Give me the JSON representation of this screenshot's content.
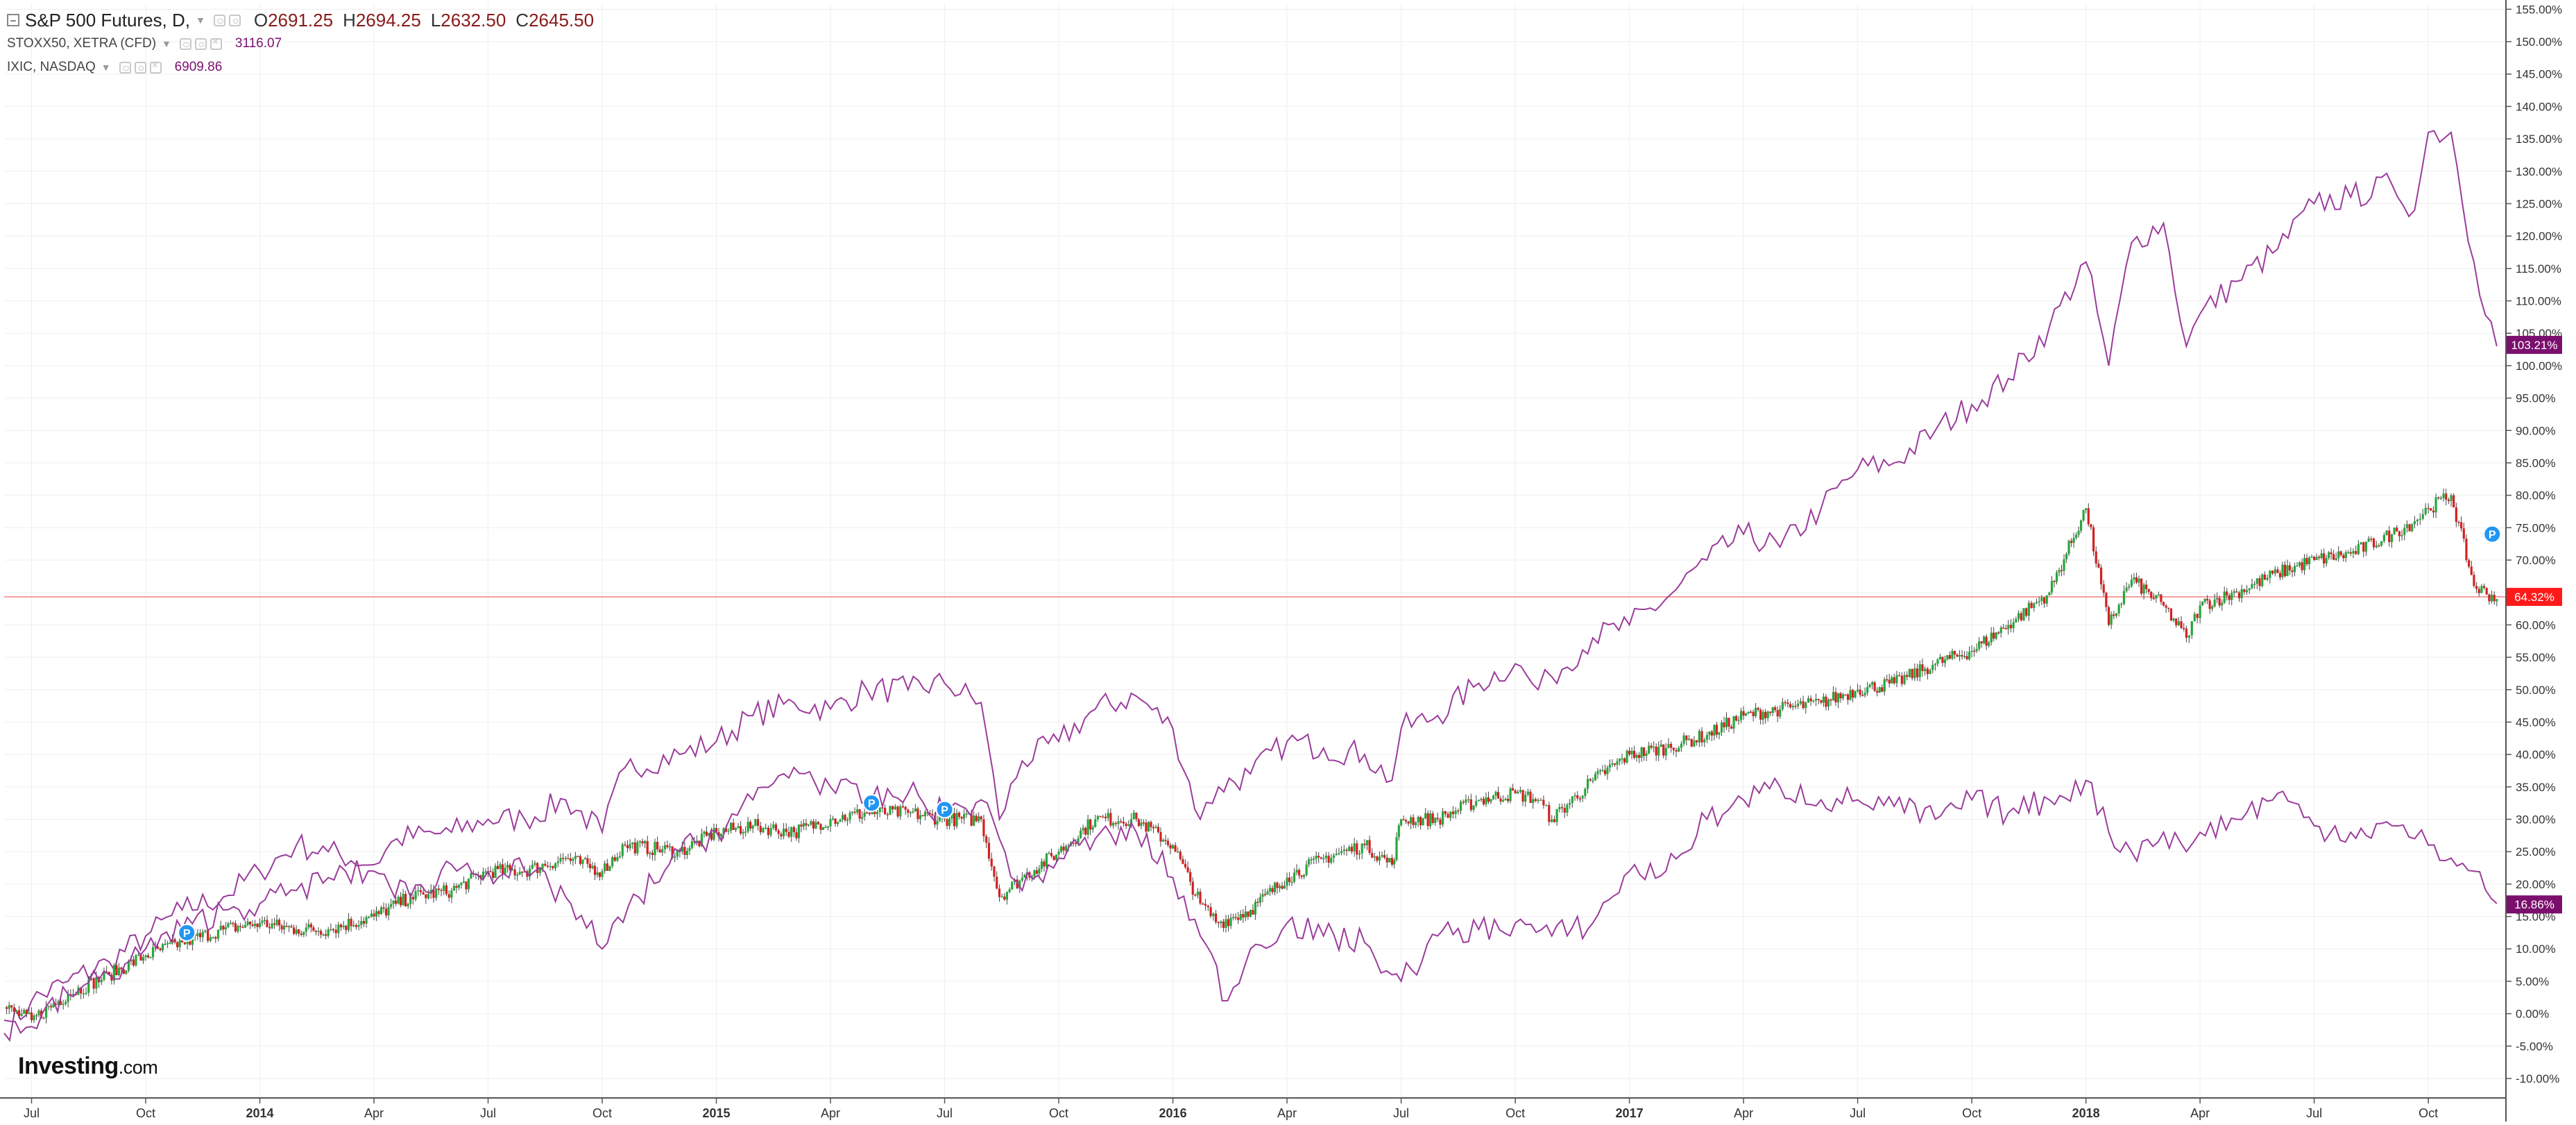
{
  "legend": {
    "main_symbol": "S&P 500 Futures, D,",
    "open_label": "O",
    "open": "2691.25",
    "high_label": "H",
    "high": "2694.25",
    "low_label": "L",
    "low": "2632.50",
    "close_label": "C",
    "close": "2645.50",
    "compare1_symbol": "STOXX50, XETRA (CFD)",
    "compare1_value": "3116.07",
    "compare2_symbol": "IXIC, NASDAQ",
    "compare2_value": "6909.86"
  },
  "branding": {
    "logo_bold": "Investing",
    "logo_suffix": ".com"
  },
  "colors": {
    "background": "#ffffff",
    "grid": "#efefef",
    "compare_line": "#9b3c9b",
    "candle_up": "#26a73a",
    "candle_down": "#d42020",
    "main_line": "#444444",
    "current_price_line": "#f08080",
    "label_sp": "#ff1a1a",
    "label_compare": "#7b0f6e",
    "marker": "#2196f3"
  },
  "icons": [
    "collapse-square-icon",
    "eye-icon",
    "gear-icon",
    "close-icon",
    "dropdown-caret-icon",
    "marker-p-icon"
  ],
  "chart_data": {
    "type": "line",
    "y_unit": "percent change",
    "ylim": [
      -13,
      156
    ],
    "y_ticks": [
      "-10.00%",
      "-5.00%",
      "0.00%",
      "5.00%",
      "10.00%",
      "15.00%",
      "20.00%",
      "25.00%",
      "30.00%",
      "35.00%",
      "40.00%",
      "45.00%",
      "50.00%",
      "55.00%",
      "60.00%",
      "65.00%",
      "70.00%",
      "75.00%",
      "80.00%",
      "85.00%",
      "90.00%",
      "95.00%",
      "100.00%",
      "105.00%",
      "110.00%",
      "115.00%",
      "120.00%",
      "125.00%",
      "130.00%",
      "135.00%",
      "140.00%",
      "145.00%",
      "150.00%",
      "155.00%"
    ],
    "x_ticks": [
      "Jul",
      "Oct",
      "2014",
      "Apr",
      "Jul",
      "Oct",
      "2015",
      "Apr",
      "Jul",
      "Oct",
      "2016",
      "Apr",
      "Jul",
      "Oct",
      "2017",
      "Apr",
      "Jul",
      "Oct",
      "2018",
      "Apr",
      "Jul",
      "Oct"
    ],
    "x_tick_pos": [
      2013.5,
      2013.75,
      2014.0,
      2014.25,
      2014.5,
      2014.75,
      2015.0,
      2015.25,
      2015.5,
      2015.75,
      2016.0,
      2016.25,
      2016.5,
      2016.75,
      2017.0,
      2017.25,
      2017.5,
      2017.75,
      2018.0,
      2018.25,
      2018.5,
      2018.75
    ],
    "xlim": [
      2013.44,
      2018.92
    ],
    "grid": true,
    "last_value_labels": [
      {
        "series": "IXIC, NASDAQ",
        "text": "103.21%",
        "value": 103.21
      },
      {
        "series": "S&P 500 Futures, D,",
        "text": "64.32%",
        "value": 64.32
      },
      {
        "series": "STOXX50, XETRA (CFD)",
        "text": "16.86%",
        "value": 16.86
      }
    ],
    "markers": [
      {
        "label": "P",
        "x": 2013.84,
        "y": 12.5
      },
      {
        "label": "P",
        "x": 2015.34,
        "y": 32.5
      },
      {
        "label": "P",
        "x": 2015.5,
        "y": 31.5
      },
      {
        "label": "P",
        "x": 2018.89,
        "y": 74
      }
    ],
    "series": [
      {
        "name": "IXIC, NASDAQ",
        "style": "line",
        "x": [
          2013.44,
          2013.5,
          2013.58,
          2013.67,
          2013.75,
          2013.83,
          2013.92,
          2014.0,
          2014.08,
          2014.15,
          2014.25,
          2014.3,
          2014.42,
          2014.5,
          2014.58,
          2014.67,
          2014.75,
          2014.8,
          2014.92,
          2015.0,
          2015.08,
          2015.17,
          2015.25,
          2015.33,
          2015.42,
          2015.5,
          2015.58,
          2015.62,
          2015.67,
          2015.75,
          2015.83,
          2015.92,
          2016.0,
          2016.06,
          2016.1,
          2016.17,
          2016.25,
          2016.33,
          2016.42,
          2016.48,
          2016.5,
          2016.58,
          2016.67,
          2016.75,
          2016.8,
          2016.83,
          2016.92,
          2017.0,
          2017.08,
          2017.17,
          2017.25,
          2017.33,
          2017.42,
          2017.5,
          2017.58,
          2017.67,
          2017.75,
          2017.83,
          2017.92,
          2018.0,
          2018.05,
          2018.1,
          2018.17,
          2018.22,
          2018.25,
          2018.33,
          2018.42,
          2018.5,
          2018.58,
          2018.67,
          2018.72,
          2018.75,
          2018.8,
          2018.85,
          2018.9
        ],
        "y": [
          -3,
          2,
          5,
          8,
          12,
          16,
          18,
          22,
          26,
          25,
          23,
          27,
          28,
          30,
          30,
          33,
          28,
          38,
          40,
          42,
          46,
          48,
          47,
          50,
          50,
          51,
          48,
          30,
          39,
          42,
          47,
          49,
          44,
          30,
          35,
          37,
          42,
          41,
          40,
          36,
          44,
          46,
          51,
          54,
          50,
          52,
          58,
          60,
          64,
          70,
          74,
          72,
          78,
          84,
          85,
          90,
          94,
          98,
          106,
          116,
          100,
          119,
          122,
          103,
          108,
          113,
          118,
          125,
          126,
          128,
          124,
          136,
          136,
          116,
          103
        ]
      },
      {
        "name": "S&P 500 Futures, D,",
        "style": "candles",
        "x": [
          2013.44,
          2013.5,
          2013.58,
          2013.67,
          2013.75,
          2013.83,
          2013.92,
          2014.0,
          2014.08,
          2014.15,
          2014.25,
          2014.33,
          2014.42,
          2014.5,
          2014.58,
          2014.67,
          2014.75,
          2014.8,
          2014.92,
          2015.0,
          2015.08,
          2015.17,
          2015.25,
          2015.33,
          2015.42,
          2015.5,
          2015.58,
          2015.62,
          2015.67,
          2015.75,
          2015.83,
          2015.92,
          2016.0,
          2016.06,
          2016.1,
          2016.17,
          2016.25,
          2016.33,
          2016.42,
          2016.48,
          2016.5,
          2016.58,
          2016.67,
          2016.75,
          2016.8,
          2016.83,
          2016.92,
          2017.0,
          2017.08,
          2017.17,
          2017.25,
          2017.33,
          2017.42,
          2017.5,
          2017.58,
          2017.67,
          2017.75,
          2017.83,
          2017.92,
          2018.0,
          2018.05,
          2018.1,
          2018.17,
          2018.22,
          2018.25,
          2018.33,
          2018.42,
          2018.5,
          2018.58,
          2018.67,
          2018.72,
          2018.75,
          2018.8,
          2018.85,
          2018.9
        ],
        "y": [
          1,
          -1,
          3,
          6,
          9,
          11,
          13,
          14,
          13,
          13,
          15,
          18,
          19,
          22,
          22,
          24,
          22,
          26,
          25,
          28,
          29,
          28,
          30,
          31,
          31,
          30,
          30,
          18,
          21,
          25,
          30,
          30,
          26,
          17,
          14,
          16,
          21,
          24,
          26,
          23,
          30,
          30,
          33,
          34,
          33,
          30,
          36,
          40,
          41,
          43,
          46,
          47,
          48,
          50,
          51,
          54,
          56,
          60,
          65,
          78,
          60,
          67,
          63,
          58,
          63,
          65,
          68,
          70,
          71,
          74,
          76,
          78,
          80,
          66,
          64
        ]
      },
      {
        "name": "STOXX50, XETRA (CFD)",
        "style": "line",
        "x": [
          2013.44,
          2013.5,
          2013.58,
          2013.67,
          2013.75,
          2013.83,
          2013.92,
          2014.0,
          2014.08,
          2014.15,
          2014.25,
          2014.33,
          2014.42,
          2014.5,
          2014.58,
          2014.67,
          2014.75,
          2014.83,
          2014.92,
          2015.0,
          2015.08,
          2015.17,
          2015.25,
          2015.33,
          2015.42,
          2015.5,
          2015.58,
          2015.62,
          2015.67,
          2015.75,
          2015.83,
          2015.92,
          2016.0,
          2016.06,
          2016.12,
          2016.17,
          2016.25,
          2016.33,
          2016.42,
          2016.48,
          2016.5,
          2016.58,
          2016.67,
          2016.75,
          2016.83,
          2016.92,
          2017.0,
          2017.08,
          2017.17,
          2017.25,
          2017.33,
          2017.42,
          2017.5,
          2017.58,
          2017.67,
          2017.75,
          2017.83,
          2017.92,
          2018.0,
          2018.05,
          2018.1,
          2018.17,
          2018.22,
          2018.25,
          2018.33,
          2018.42,
          2018.5,
          2018.58,
          2018.67,
          2018.72,
          2018.75,
          2018.8,
          2018.85,
          2018.9
        ],
        "y": [
          -1,
          -2,
          3,
          6,
          10,
          13,
          16,
          17,
          19,
          21,
          22,
          18,
          23,
          22,
          22,
          18,
          10,
          18,
          25,
          28,
          33,
          38,
          35,
          33,
          34,
          31,
          33,
          27,
          19,
          24,
          27,
          28,
          21,
          12,
          2,
          10,
          14,
          12,
          11,
          6,
          5,
          12,
          13,
          14,
          12,
          14,
          22,
          22,
          30,
          33,
          35,
          33,
          33,
          32,
          30,
          33,
          31,
          33,
          36,
          28,
          25,
          28,
          25,
          28,
          30,
          34,
          29,
          28,
          29,
          27,
          26,
          24,
          22,
          17
        ]
      }
    ]
  }
}
